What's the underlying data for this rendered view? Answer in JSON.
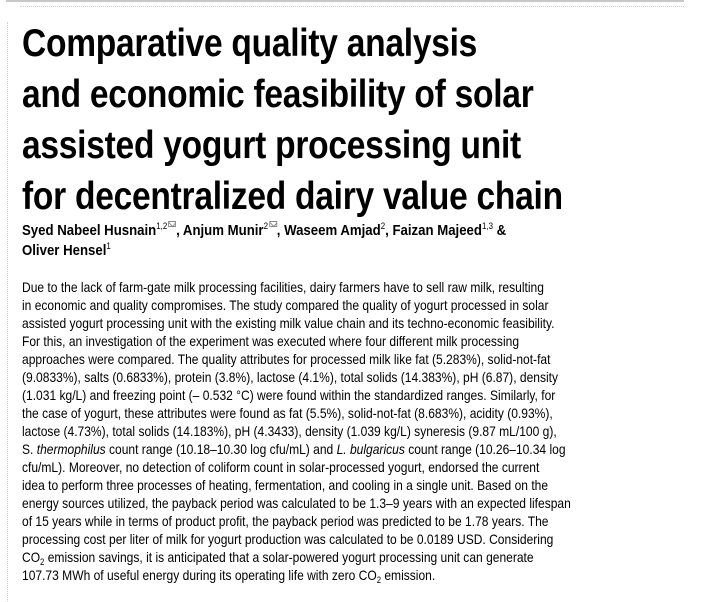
{
  "title_lines": [
    "Comparative quality analysis",
    "and economic feasibility of solar",
    "assisted yogurt processing unit",
    "for decentralized dairy value chain"
  ],
  "authors_lines": [
    [
      [
        "Syed Nabeel Husnain",
        ""
      ],
      [
        "1,2",
        "sup"
      ],
      [
        "",
        "env"
      ],
      [
        ", Anjum Munir",
        ""
      ],
      [
        "2",
        "sup"
      ],
      [
        "",
        "env"
      ],
      [
        ", Waseem Amjad",
        ""
      ],
      [
        "2",
        "sup"
      ],
      [
        ", Faizan Majeed",
        ""
      ],
      [
        "1,3",
        "sup"
      ],
      [
        " &",
        ""
      ]
    ],
    [
      [
        "Oliver Hensel",
        ""
      ],
      [
        "1",
        "sup"
      ]
    ]
  ],
  "abstract_lines": [
    [
      [
        "Due to the lack of farm-gate milk processing facilities, dairy farmers have to sell raw milk, resulting",
        ""
      ]
    ],
    [
      [
        "in economic and quality compromises. The study compared the quality of yogurt processed in solar",
        ""
      ]
    ],
    [
      [
        "assisted yogurt processing unit with the existing milk value chain and its techno-economic feasibility.",
        ""
      ]
    ],
    [
      [
        "For this, an investigation of the experiment was executed where four different milk processing",
        ""
      ]
    ],
    [
      [
        "approaches were compared. The quality attributes for processed milk like fat (5.283%), solid-not-fat",
        ""
      ]
    ],
    [
      [
        "(9.0833%), salts (0.6833%), protein (3.8%), lactose (4.1%), total solids (14.383%), pH (6.87), density",
        ""
      ]
    ],
    [
      [
        "(1.031 kg/L) and freezing point (– 0.532 °C) were found within the standardized ranges. Similarly, for",
        ""
      ]
    ],
    [
      [
        "the case of yogurt, these attributes were found as fat (5.5%), solid-not-fat (8.683%), acidity (0.93%),",
        ""
      ]
    ],
    [
      [
        "lactose (4.73%), total solids (14.183%), pH (4.3433), density (1.039 kg/L) syneresis (9.87 mL/100 g),",
        ""
      ]
    ],
    [
      [
        "S. ",
        ""
      ],
      [
        "thermophilus",
        "i"
      ],
      [
        " count range (10.18–10.30 log cfu/mL) and ",
        ""
      ],
      [
        "L. bulgaricus",
        "i"
      ],
      [
        " count range (10.26–10.34 log",
        ""
      ]
    ],
    [
      [
        "cfu/mL). Moreover, no detection of coliform count in solar-processed yogurt, endorsed the current",
        ""
      ]
    ],
    [
      [
        "idea to perform three processes of heating, fermentation, and cooling in a single unit. Based on the",
        ""
      ]
    ],
    [
      [
        "energy sources utilized, the payback period was calculated to be 1.3–9 years with an expected lifespan",
        ""
      ]
    ],
    [
      [
        "of 15 years while in terms of product profit, the payback period was predicted to be 1.78 years. The",
        ""
      ]
    ],
    [
      [
        "processing cost per liter of milk for yogurt production was calculated to be 0.0189 USD. Considering",
        ""
      ]
    ],
    [
      [
        "CO",
        ""
      ],
      [
        "2",
        "sub"
      ],
      [
        " emission savings, it is anticipated that a solar-powered yogurt processing unit can generate",
        ""
      ]
    ],
    [
      [
        "107.73 MWh of useful energy during its operating life with zero CO",
        ""
      ],
      [
        "2",
        "sub"
      ],
      [
        " emission.",
        ""
      ]
    ]
  ]
}
